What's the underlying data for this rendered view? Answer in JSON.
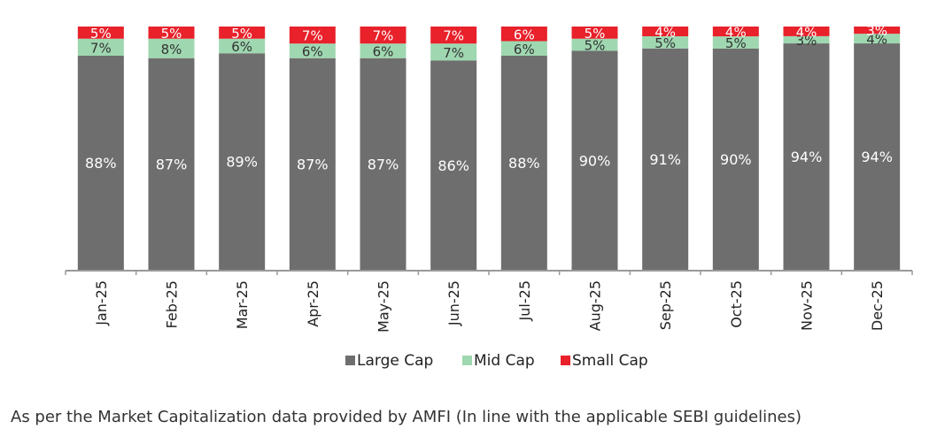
{
  "chart_data": {
    "type": "bar",
    "stacked": true,
    "categories": [
      "Jan-25",
      "Feb-25",
      "Mar-25",
      "Apr-25",
      "May-25",
      "Jun-25",
      "Jul-25",
      "Aug-25",
      "Sep-25",
      "Oct-25",
      "Nov-25",
      "Dec-25"
    ],
    "series": [
      {
        "name": "Large Cap",
        "color": "#6e6e6e",
        "values": [
          88,
          87,
          89,
          87,
          87,
          86,
          88,
          90,
          91,
          90,
          94,
          94
        ]
      },
      {
        "name": "Mid Cap",
        "color": "#9fd7b0",
        "values": [
          7,
          8,
          6,
          6,
          6,
          7,
          6,
          5,
          5,
          5,
          3,
          4
        ]
      },
      {
        "name": "Small Cap",
        "color": "#e8212a",
        "values": [
          5,
          5,
          5,
          7,
          7,
          7,
          6,
          5,
          4,
          4,
          4,
          3
        ]
      }
    ],
    "value_suffix": "%",
    "ylim": [
      0,
      100
    ],
    "grid": false,
    "legend_position": "bottom"
  },
  "footnote": "As per the Market Capitalization data provided by AMFI (In line with the applicable SEBI guidelines)"
}
